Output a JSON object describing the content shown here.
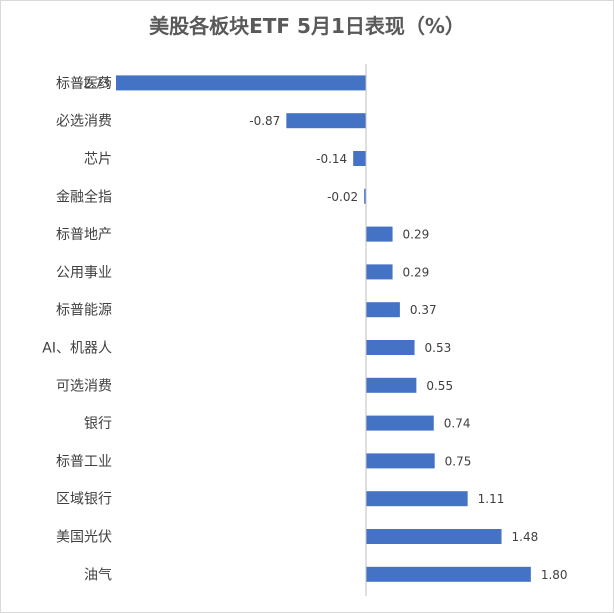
{
  "chart_data": {
    "type": "bar",
    "orientation": "horizontal",
    "title": "美股各板块ETF 5月1日表现（%）",
    "categories": [
      "标普医药",
      "必选消费",
      "芯片",
      "金融全指",
      "标普地产",
      "公用事业",
      "标普能源",
      "AI、机器人",
      "可选消费",
      "银行",
      "标普工业",
      "区域银行",
      "美国光伏",
      "油气"
    ],
    "values": [
      -2.73,
      -0.87,
      -0.14,
      -0.02,
      0.29,
      0.29,
      0.37,
      0.53,
      0.55,
      0.74,
      0.75,
      1.11,
      1.48,
      1.8
    ],
    "data_labels": [
      "-2.73",
      "-0.87",
      "-0.14",
      "-0.02",
      "0.29",
      "0.29",
      "0.37",
      "0.53",
      "0.55",
      "0.74",
      "0.75",
      "1.11",
      "1.48",
      "1.80"
    ],
    "xlim": [
      -2.73,
      1.8
    ],
    "grid": false,
    "legend": "none",
    "bar_color": "#4472c4",
    "label_color": "#404040",
    "axis_color": "#bfbfbf"
  }
}
